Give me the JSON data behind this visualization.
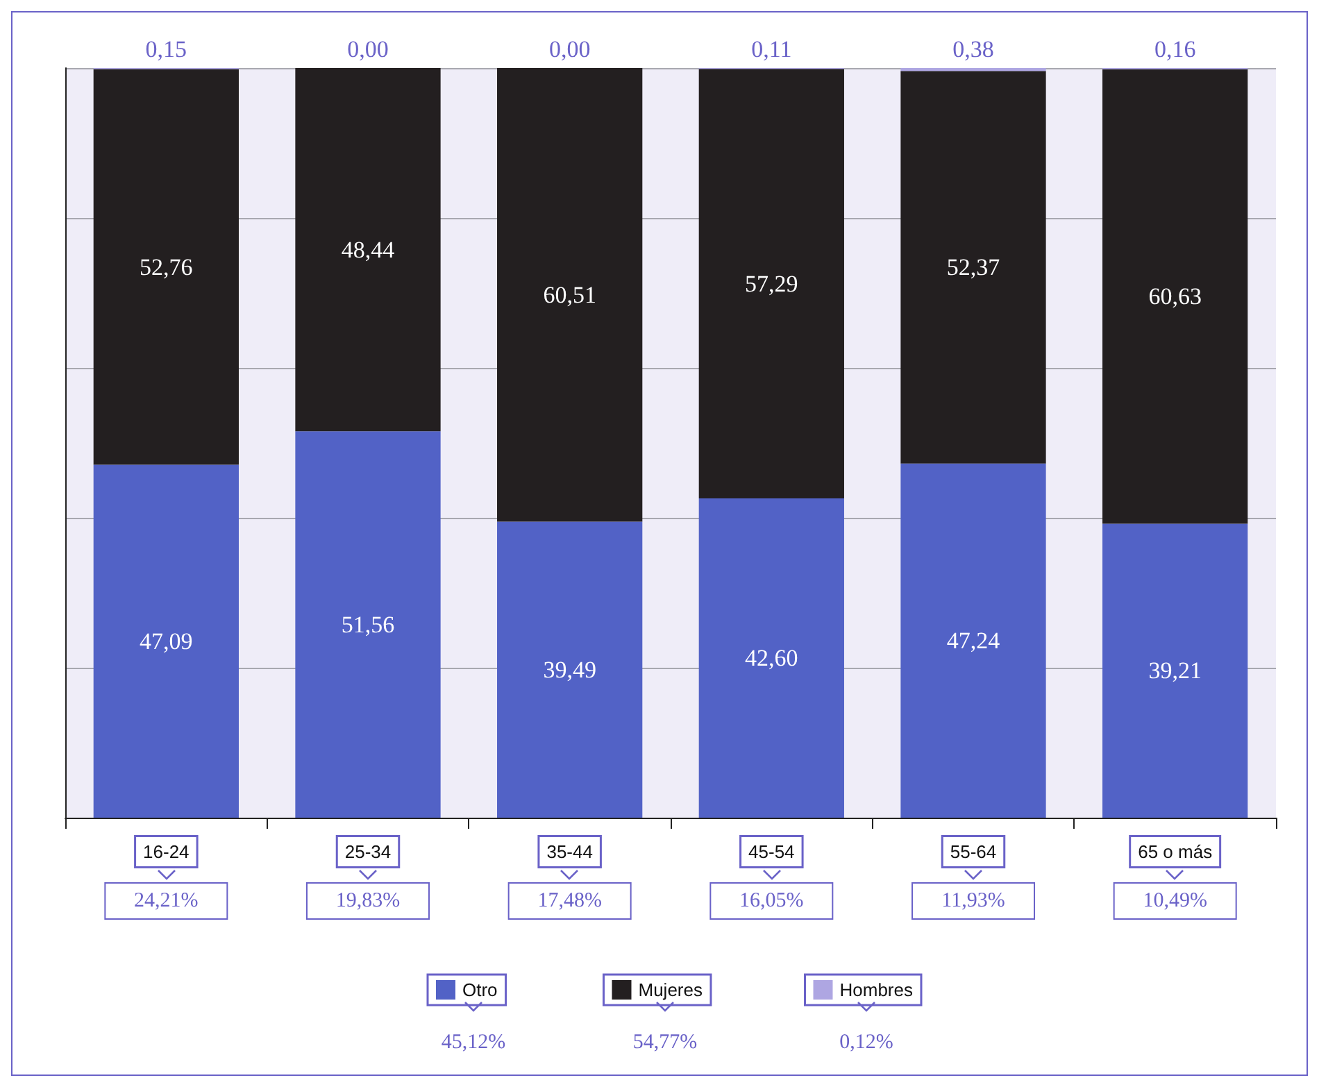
{
  "chart_data": {
    "type": "bar",
    "stacked": true,
    "tick_labels": "x",
    "categories": [
      "16-24",
      "25-34",
      "35-44",
      "45-54",
      "55-64",
      "65 o más"
    ],
    "series": [
      {
        "name": "Otro",
        "color": "#5262c6",
        "values": [
          47.09,
          51.56,
          39.49,
          42.6,
          47.24,
          39.21
        ],
        "value_labels": [
          "47,09",
          "51,56",
          "39,49",
          "42,60",
          "47,24",
          "39,21"
        ]
      },
      {
        "name": "Mujeres",
        "color": "#231f20",
        "values": [
          52.76,
          48.44,
          60.51,
          57.29,
          52.37,
          60.63
        ],
        "value_labels": [
          "52,76",
          "48,44",
          "60,51",
          "57,29",
          "52,37",
          "60,63"
        ]
      },
      {
        "name": "Hombres",
        "color": "#aea6e2",
        "values": [
          0.15,
          0,
          0,
          0.11,
          0.38,
          0.16
        ],
        "value_labels": [
          "0,15",
          "0,00",
          "0,00",
          "0,11",
          "0,38",
          "0,16"
        ]
      }
    ],
    "grid": "y",
    "legend": "bottom",
    "annotations": [
      "24,21%",
      "19,83%",
      "17,48%",
      "16,05%",
      "11,93%",
      "10,49%",
      "45,12%",
      "54,77%",
      "0,12%"
    ]
  }
}
